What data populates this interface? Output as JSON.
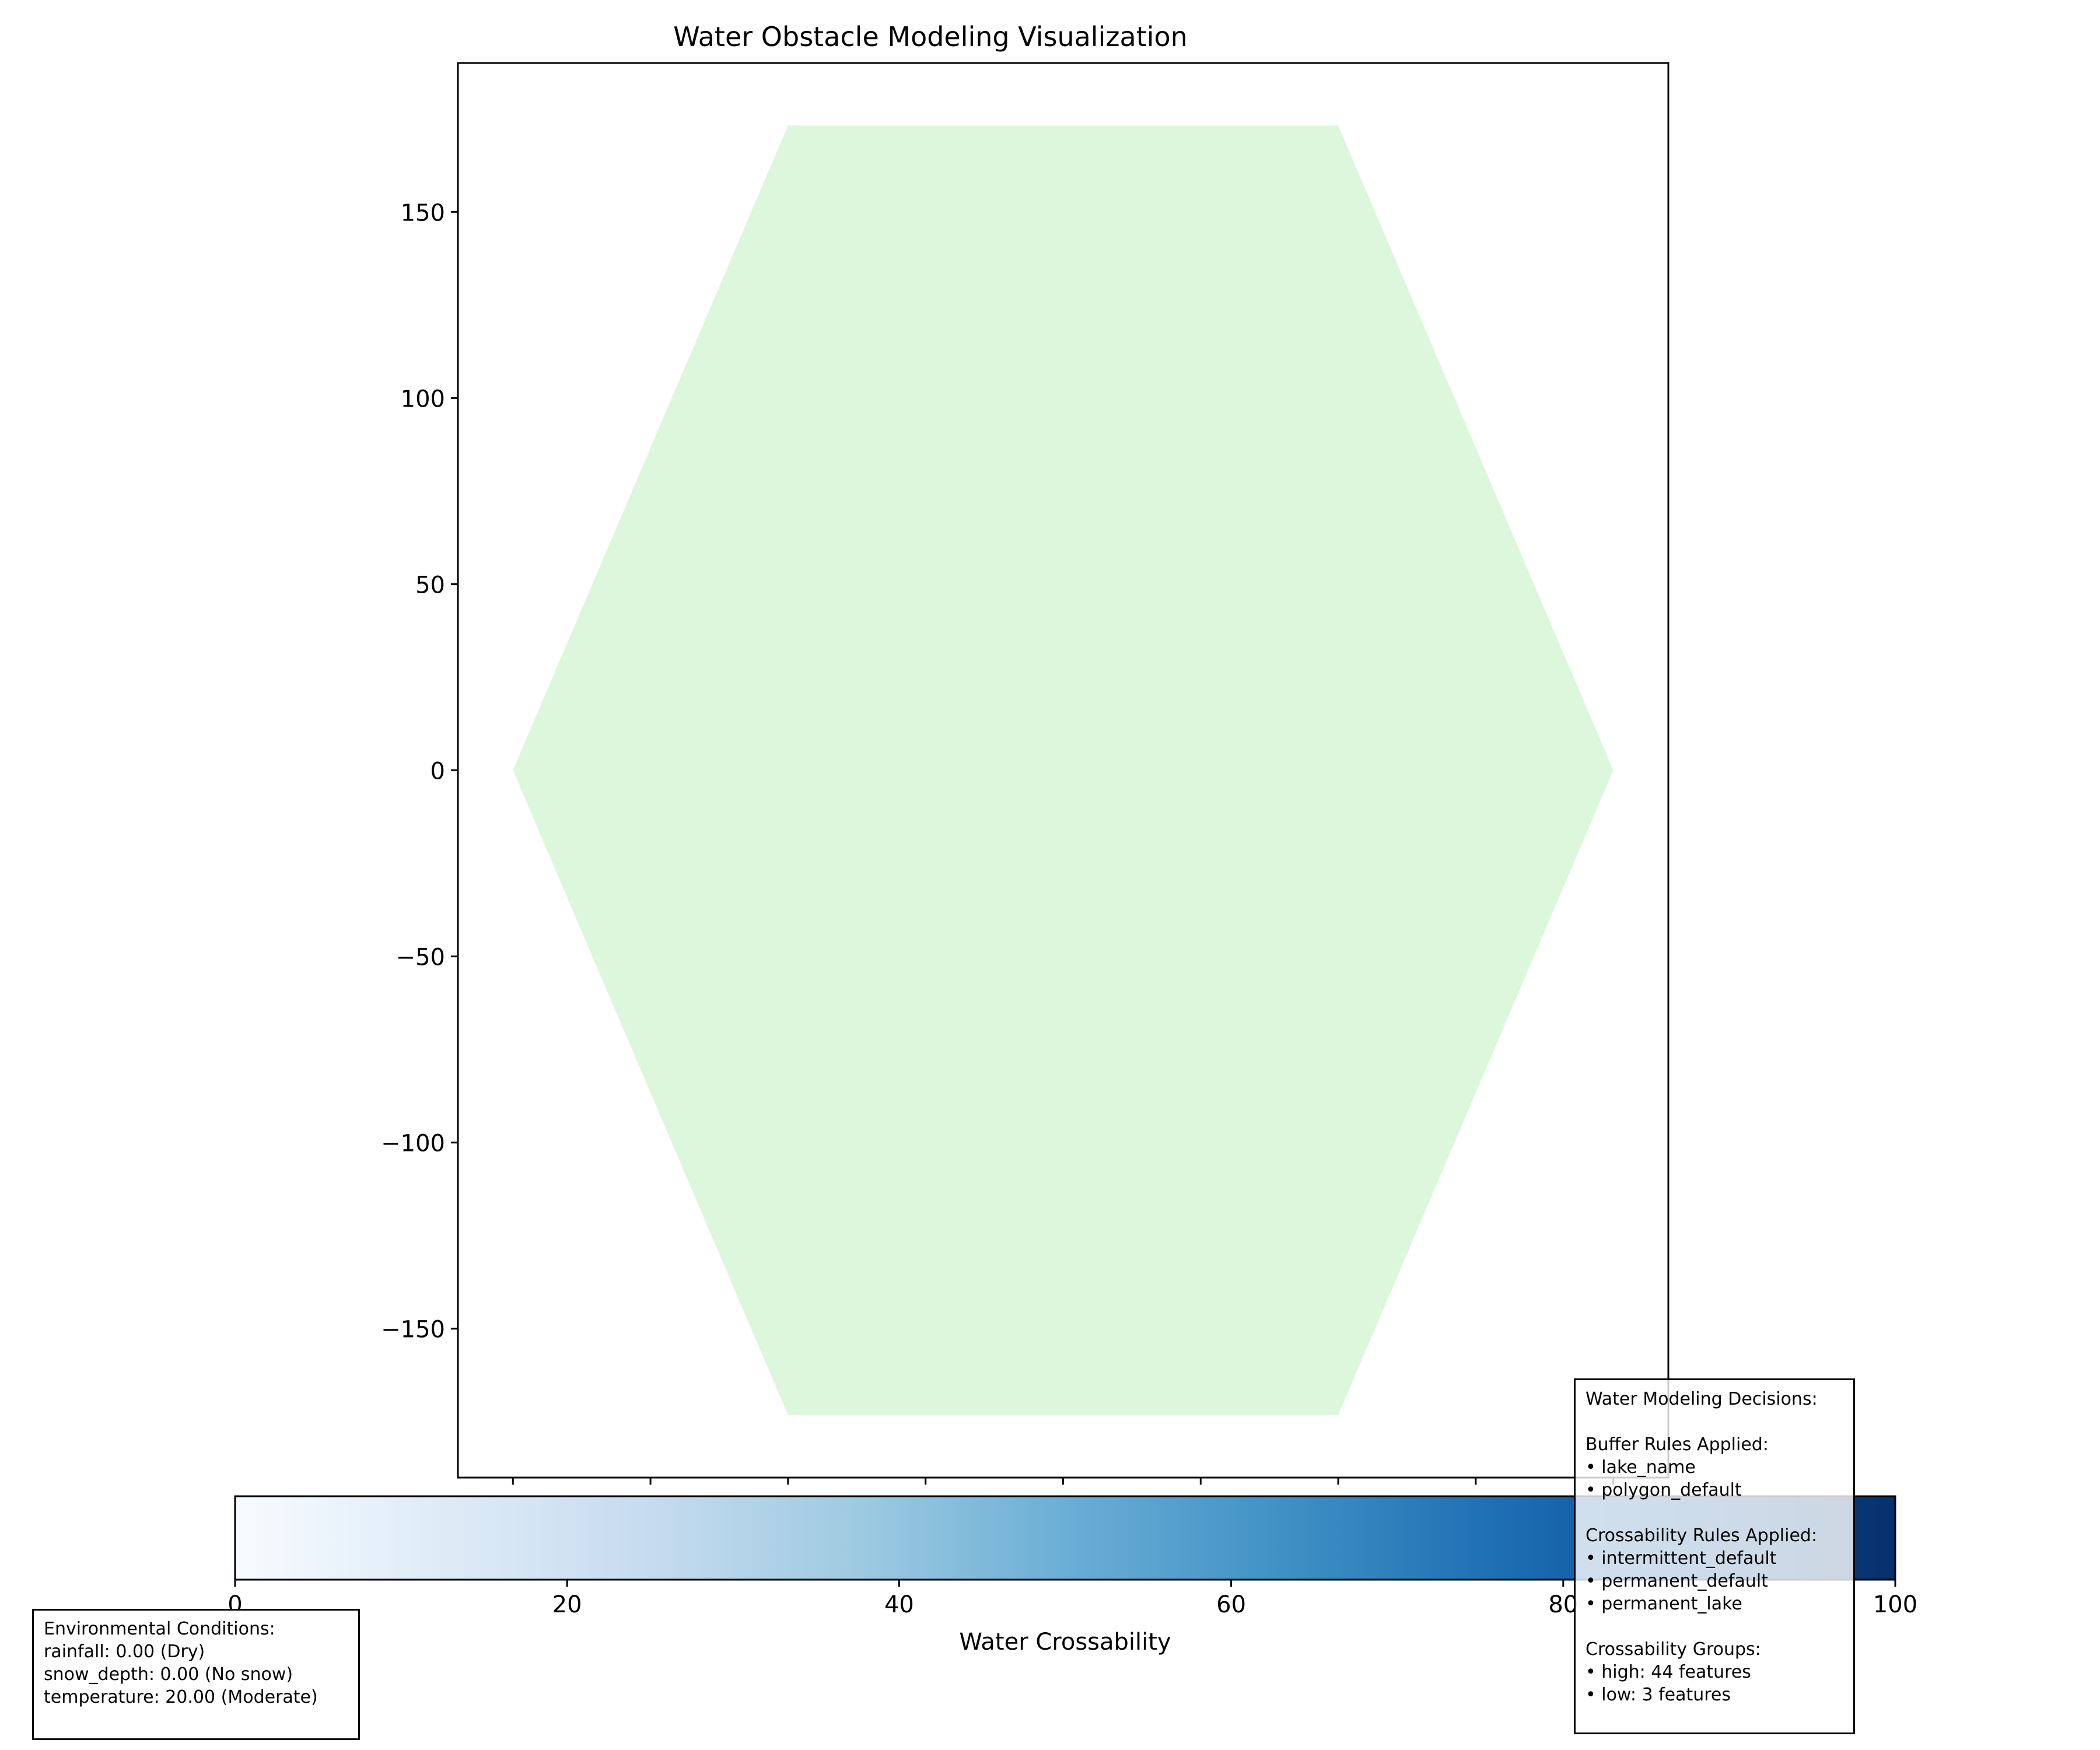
{
  "chart_data": {
    "type": "heatmap",
    "title": "Water Obstacle Modeling Visualization",
    "xlabel": "",
    "ylabel": "",
    "xlim": [
      -220,
      220
    ],
    "ylim": [
      -190,
      190
    ],
    "yticks": [
      150,
      100,
      50,
      0,
      -50,
      -100,
      -150
    ],
    "ytick_labels": [
      "150",
      "100",
      "50",
      "0",
      "−50",
      "−100",
      "−150"
    ],
    "xticks": [
      -200,
      -150,
      -100,
      -50,
      0,
      50,
      100,
      150,
      200
    ],
    "grid": false,
    "polygon": {
      "vertices": [
        [
          -200,
          0
        ],
        [
          -100,
          173.2
        ],
        [
          100,
          173.2
        ],
        [
          200,
          0
        ],
        [
          100,
          -173.2
        ],
        [
          -100,
          -173.2
        ]
      ],
      "fill_color": "#dcf7dc"
    },
    "colorbar": {
      "label": "Water Crossability",
      "range": [
        0,
        100
      ],
      "ticks": [
        0,
        20,
        40,
        60,
        80,
        100
      ],
      "tick_labels": [
        "0",
        "20",
        "40",
        "60",
        "80",
        "100"
      ],
      "orientation": "horizontal",
      "colormap": "Blues",
      "colors": [
        "#f7fbff",
        "#deebf7",
        "#c6dbef",
        "#9ecae1",
        "#6baed6",
        "#4292c6",
        "#2171b5",
        "#08519c",
        "#08306b"
      ]
    }
  },
  "environmental_conditions": {
    "lines": [
      "Environmental Conditions:",
      "rainfall: 0.00 (Dry)",
      "snow_depth: 0.00 (No snow)",
      "temperature: 20.00 (Moderate)"
    ]
  },
  "modeling_decisions": {
    "lines": [
      "Water Modeling Decisions:",
      "",
      "Buffer Rules Applied:",
      "• lake_name",
      "• polygon_default",
      "",
      "Crossability Rules Applied:",
      "• intermittent_default",
      "• permanent_default",
      "• permanent_lake",
      "",
      "Crossability Groups:",
      "• high: 44 features",
      "• low: 3 features"
    ]
  }
}
